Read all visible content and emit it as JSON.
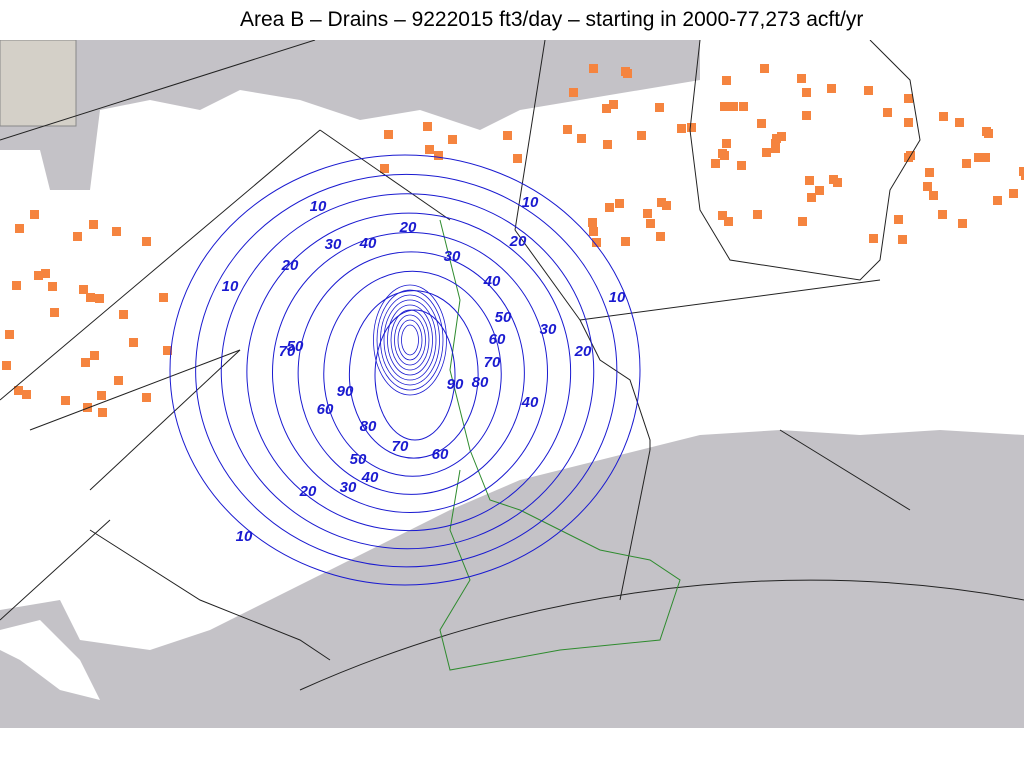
{
  "title": "Area B – Drains – 9222015 ft3/day – starting in 2000-77,273 acft/yr",
  "contour_levels": [
    10,
    20,
    30,
    40,
    50,
    60,
    70,
    80,
    90
  ]
}
